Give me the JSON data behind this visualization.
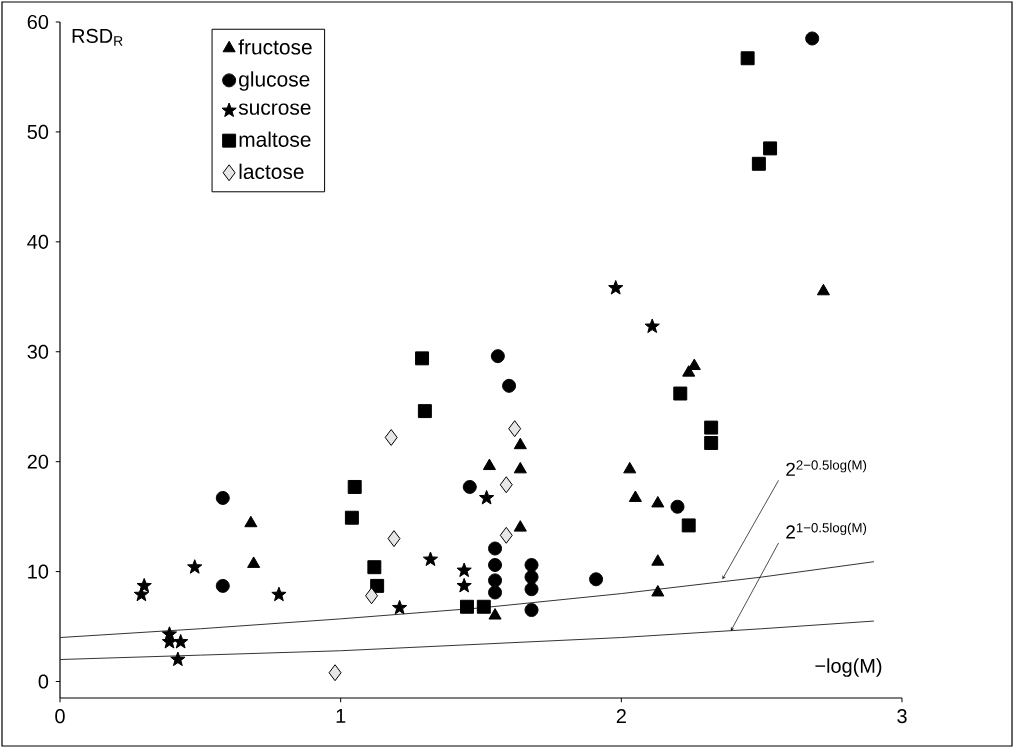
{
  "chart_data": {
    "type": "scatter",
    "xlabel": "−log(M)",
    "ylabel": "RSD$_{R}$",
    "xlim": [
      0,
      3
    ],
    "ylim": [
      -1.5,
      60
    ],
    "xticks": [
      0,
      1,
      2,
      3
    ],
    "yticks": [
      0,
      10,
      20,
      30,
      40,
      50,
      60
    ],
    "grid": false,
    "legend": "top left",
    "series": [
      {
        "name": "fructose",
        "color": "#000000",
        "marker": "triangle",
        "x": [
          0.68,
          0.69,
          1.53,
          1.64,
          1.64,
          1.64,
          1.55,
          2.72,
          2.26,
          2.24,
          2.03,
          2.05,
          2.13,
          2.13,
          2.13
        ],
        "values": [
          14.4,
          10.7,
          19.6,
          21.5,
          19.3,
          14.0,
          6.0,
          35.5,
          28.7,
          28.1,
          19.3,
          16.7,
          16.2,
          10.9,
          8.1
        ]
      },
      {
        "name": "glucose",
        "color": "#000000",
        "marker": "circle",
        "x": [
          0.58,
          0.58,
          1.56,
          1.6,
          1.46,
          1.55,
          1.55,
          1.55,
          1.55,
          1.68,
          1.68,
          1.68,
          1.68,
          1.91,
          2.2,
          2.68
        ],
        "values": [
          16.7,
          8.7,
          29.6,
          26.9,
          17.7,
          12.1,
          10.6,
          9.2,
          8.1,
          10.6,
          9.5,
          8.4,
          6.5,
          9.3,
          15.9,
          58.5
        ]
      },
      {
        "name": "sucrose",
        "color": "#000000",
        "marker": "star",
        "x": [
          0.3,
          0.29,
          0.48,
          0.78,
          0.39,
          0.39,
          0.43,
          0.42,
          1.32,
          1.52,
          1.44,
          1.44,
          1.21,
          1.98,
          2.11
        ],
        "values": [
          8.7,
          7.9,
          10.4,
          7.9,
          4.3,
          3.6,
          3.6,
          2.0,
          11.1,
          16.7,
          10.1,
          8.7,
          6.7,
          35.8,
          32.3
        ]
      },
      {
        "name": "maltose",
        "color": "#000000",
        "marker": "square",
        "x": [
          1.29,
          1.3,
          1.05,
          1.04,
          1.12,
          1.13,
          1.45,
          1.51,
          2.21,
          2.32,
          2.32,
          2.24,
          2.45,
          2.53,
          2.49
        ],
        "values": [
          29.4,
          24.6,
          17.7,
          14.9,
          10.4,
          8.7,
          6.8,
          6.8,
          26.2,
          23.1,
          21.7,
          14.2,
          56.7,
          48.5,
          47.1
        ]
      },
      {
        "name": "lactose",
        "color": "#e6e6e6",
        "marker": "diamond",
        "x": [
          1.18,
          1.19,
          1.11,
          0.98,
          1.62,
          1.59,
          1.59
        ],
        "values": [
          22.2,
          13.0,
          7.8,
          0.8,
          23.0,
          17.9,
          13.3
        ]
      },
      {
        "type": "line",
        "color": "#333333",
        "marker": "none",
        "x": [
          0,
          0.5,
          1,
          1.5,
          2,
          2.5,
          2.9
        ],
        "values": [
          4,
          4.8,
          5.7,
          6.7,
          8,
          9.5,
          10.9
        ]
      },
      {
        "type": "line",
        "color": "#333333",
        "marker": "none",
        "x": [
          0,
          0.5,
          1,
          1.5,
          2,
          2.5,
          2.9
        ],
        "values": [
          2,
          2.4,
          2.8,
          3.4,
          4,
          4.8,
          5.5
        ]
      }
    ],
    "annotations": [
      {
        "text": "2$^{2−0.5log(M)}$",
        "x": 2.36,
        "y": 9.3
      },
      {
        "text": "2$^{1−0.5log(M)}$",
        "x": 2.39,
        "y": 4.6
      }
    ]
  }
}
